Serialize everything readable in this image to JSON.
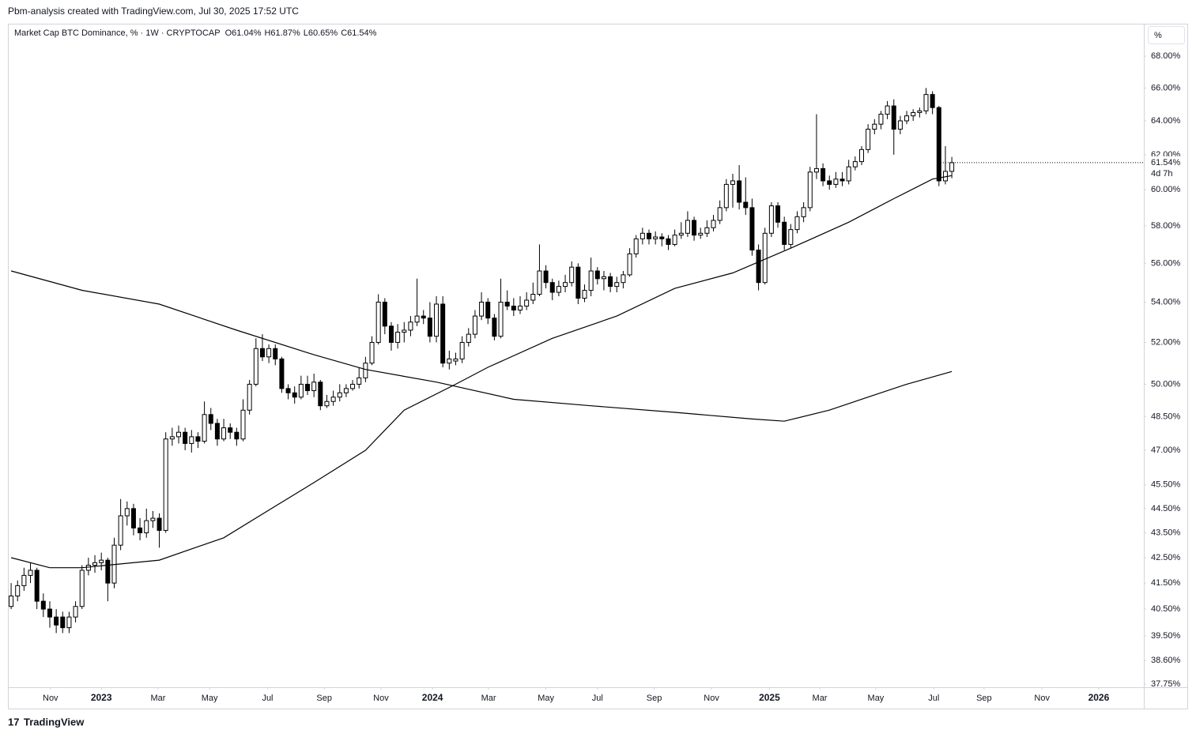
{
  "header": "Pbm-analysis created with TradingView.com, Jul 30, 2025 17:52 UTC",
  "footer": "TradingView",
  "chart_data": {
    "type": "candlestick",
    "title": "Market Cap BTC Dominance, % · 1W · CRYPTOCAP",
    "ohlc_labels": [
      "O61.04%",
      "H61.87%",
      "L60.65%",
      "C61.54%"
    ],
    "scale_button": "%",
    "price_marker": {
      "value": 61.54,
      "label": "61.54%"
    },
    "countdown": "4d 7h",
    "log_scale": true,
    "grid": false,
    "up_color": "#ffffff",
    "down_color": "#000000",
    "ylim": [
      37.64,
      70.1
    ],
    "yticks": [
      {
        "value": 37.75,
        "label": "37.75%"
      },
      {
        "value": 38.6,
        "label": "38.60%"
      },
      {
        "value": 39.5,
        "label": "39.50%"
      },
      {
        "value": 40.5,
        "label": "40.50%"
      },
      {
        "value": 41.5,
        "label": "41.50%"
      },
      {
        "value": 42.5,
        "label": "42.50%"
      },
      {
        "value": 43.5,
        "label": "43.50%"
      },
      {
        "value": 44.5,
        "label": "44.50%"
      },
      {
        "value": 45.5,
        "label": "45.50%"
      },
      {
        "value": 47,
        "label": "47.00%"
      },
      {
        "value": 48.5,
        "label": "48.50%"
      },
      {
        "value": 50,
        "label": "50.00%"
      },
      {
        "value": 52,
        "label": "52.00%"
      },
      {
        "value": 54,
        "label": "54.00%"
      },
      {
        "value": 56,
        "label": "56.00%"
      },
      {
        "value": 58,
        "label": "58.00%"
      },
      {
        "value": 60,
        "label": "60.00%"
      },
      {
        "value": 62,
        "label": "62.00%"
      },
      {
        "value": 64,
        "label": "64.00%"
      },
      {
        "value": 66,
        "label": "66.00%"
      },
      {
        "value": 68,
        "label": "68.00%"
      }
    ],
    "xlim": [
      -0.5,
      175.8
    ],
    "xticks": [
      {
        "value": 6.1,
        "label": "Nov"
      },
      {
        "value": 14,
        "label": "2023"
      },
      {
        "value": 22.8,
        "label": "Mar"
      },
      {
        "value": 30.8,
        "label": "May"
      },
      {
        "value": 39.8,
        "label": "Jul"
      },
      {
        "value": 48.6,
        "label": "Sep"
      },
      {
        "value": 57.4,
        "label": "Nov"
      },
      {
        "value": 65.4,
        "label": "2024"
      },
      {
        "value": 74.1,
        "label": "Mar"
      },
      {
        "value": 83,
        "label": "May"
      },
      {
        "value": 91,
        "label": "Jul"
      },
      {
        "value": 99.8,
        "label": "Sep"
      },
      {
        "value": 108.7,
        "label": "Nov"
      },
      {
        "value": 117.7,
        "label": "2025"
      },
      {
        "value": 125.5,
        "label": "Mar"
      },
      {
        "value": 134.2,
        "label": "May"
      },
      {
        "value": 143.2,
        "label": "Jul"
      },
      {
        "value": 151,
        "label": "Sep"
      },
      {
        "value": 160,
        "label": "Nov"
      },
      {
        "value": 168.8,
        "label": "2026"
      }
    ],
    "candles": [
      [
        40.6,
        41.5,
        40.5,
        41.0
      ],
      [
        41.0,
        41.6,
        40.8,
        41.4
      ],
      [
        41.4,
        42.1,
        41.2,
        41.8
      ],
      [
        41.8,
        42.3,
        41.5,
        42.0
      ],
      [
        42.0,
        42.1,
        40.5,
        40.8
      ],
      [
        40.8,
        41.1,
        40.2,
        40.5
      ],
      [
        40.5,
        40.8,
        39.8,
        40.2
      ],
      [
        40.2,
        40.5,
        39.6,
        39.9
      ],
      [
        40.2,
        40.4,
        39.6,
        39.8
      ],
      [
        39.8,
        40.4,
        39.6,
        40.2
      ],
      [
        40.2,
        40.8,
        40.0,
        40.6
      ],
      [
        40.6,
        42.2,
        40.5,
        42.0
      ],
      [
        42.0,
        42.5,
        41.8,
        42.2
      ],
      [
        42.2,
        42.6,
        41.9,
        42.3
      ],
      [
        42.3,
        42.7,
        42.0,
        42.4
      ],
      [
        42.4,
        42.5,
        40.8,
        41.5
      ],
      [
        41.5,
        43.3,
        41.3,
        43.0
      ],
      [
        43.0,
        44.9,
        42.8,
        44.2
      ],
      [
        44.2,
        44.8,
        43.8,
        44.5
      ],
      [
        44.5,
        44.7,
        43.4,
        43.7
      ],
      [
        43.7,
        44.1,
        43.2,
        43.5
      ],
      [
        43.5,
        44.5,
        43.3,
        44.0
      ],
      [
        44.0,
        44.4,
        43.7,
        44.1
      ],
      [
        44.1,
        44.3,
        42.9,
        43.6
      ],
      [
        43.6,
        47.8,
        43.5,
        47.5
      ],
      [
        47.5,
        48.0,
        47.2,
        47.6
      ],
      [
        47.6,
        48.1,
        47.3,
        47.8
      ],
      [
        47.8,
        48.0,
        47.0,
        47.3
      ],
      [
        47.3,
        47.9,
        46.9,
        47.6
      ],
      [
        47.6,
        47.8,
        47.1,
        47.4
      ],
      [
        47.4,
        49.2,
        47.3,
        48.6
      ],
      [
        48.6,
        48.9,
        47.9,
        48.2
      ],
      [
        48.2,
        48.4,
        47.2,
        47.5
      ],
      [
        47.5,
        48.4,
        47.4,
        48.0
      ],
      [
        48.0,
        48.2,
        47.5,
        47.8
      ],
      [
        47.8,
        48.0,
        47.2,
        47.5
      ],
      [
        47.5,
        49.3,
        47.4,
        48.8
      ],
      [
        48.8,
        50.2,
        48.6,
        50.0
      ],
      [
        50.0,
        52.2,
        49.9,
        51.7
      ],
      [
        51.7,
        52.4,
        51.1,
        51.3
      ],
      [
        51.3,
        51.9,
        51.0,
        51.7
      ],
      [
        51.7,
        51.9,
        50.9,
        51.2
      ],
      [
        51.2,
        51.3,
        49.6,
        49.8
      ],
      [
        49.8,
        50.0,
        49.3,
        49.6
      ],
      [
        49.6,
        49.9,
        49.1,
        49.4
      ],
      [
        49.4,
        50.4,
        49.3,
        50.0
      ],
      [
        50.0,
        50.4,
        49.5,
        49.7
      ],
      [
        49.7,
        50.5,
        49.4,
        50.1
      ],
      [
        50.1,
        50.2,
        48.8,
        49.0
      ],
      [
        49.0,
        49.5,
        48.9,
        49.2
      ],
      [
        49.2,
        49.7,
        49.0,
        49.4
      ],
      [
        49.4,
        50.0,
        49.2,
        49.6
      ],
      [
        49.6,
        50.0,
        49.4,
        49.8
      ],
      [
        49.8,
        50.2,
        49.7,
        50.0
      ],
      [
        50.0,
        50.8,
        49.8,
        50.3
      ],
      [
        50.3,
        51.3,
        50.1,
        51.0
      ],
      [
        51.0,
        52.3,
        50.9,
        52.0
      ],
      [
        52.0,
        54.4,
        51.9,
        54.0
      ],
      [
        54.0,
        54.2,
        52.4,
        52.8
      ],
      [
        52.8,
        53.0,
        51.6,
        52.0
      ],
      [
        52.0,
        52.9,
        51.7,
        52.5
      ],
      [
        52.5,
        53.0,
        52.0,
        52.6
      ],
      [
        52.6,
        53.3,
        52.3,
        53.0
      ],
      [
        53.0,
        55.2,
        52.8,
        53.3
      ],
      [
        53.3,
        53.6,
        52.9,
        53.2
      ],
      [
        53.2,
        54.0,
        52.0,
        52.3
      ],
      [
        52.3,
        54.3,
        52.0,
        53.9
      ],
      [
        53.9,
        54.3,
        50.8,
        51.0
      ],
      [
        51.0,
        51.6,
        50.7,
        51.2
      ],
      [
        51.1,
        51.5,
        50.9,
        51.2
      ],
      [
        51.2,
        52.3,
        51.0,
        52.0
      ],
      [
        52.0,
        52.7,
        51.8,
        52.4
      ],
      [
        52.4,
        53.6,
        52.2,
        53.3
      ],
      [
        53.3,
        54.5,
        53.1,
        54.0
      ],
      [
        54.0,
        54.2,
        52.9,
        53.2
      ],
      [
        53.2,
        53.4,
        52.1,
        52.3
      ],
      [
        52.3,
        55.2,
        52.2,
        54.0
      ],
      [
        54.0,
        54.6,
        53.6,
        53.8
      ],
      [
        53.8,
        54.2,
        53.3,
        53.6
      ],
      [
        53.6,
        54.3,
        53.4,
        53.8
      ],
      [
        53.8,
        54.5,
        53.6,
        54.1
      ],
      [
        54.1,
        55.0,
        53.9,
        54.4
      ],
      [
        54.4,
        57.0,
        54.3,
        55.6
      ],
      [
        55.6,
        55.9,
        54.7,
        55.0
      ],
      [
        55.0,
        55.2,
        54.1,
        54.5
      ],
      [
        54.5,
        55.1,
        54.3,
        54.8
      ],
      [
        54.8,
        55.4,
        54.5,
        55.0
      ],
      [
        55.0,
        56.1,
        54.8,
        55.8
      ],
      [
        55.8,
        56.0,
        53.9,
        54.2
      ],
      [
        54.2,
        54.9,
        54.0,
        54.6
      ],
      [
        54.6,
        56.3,
        54.3,
        55.6
      ],
      [
        55.6,
        55.8,
        54.9,
        55.2
      ],
      [
        55.2,
        55.6,
        54.6,
        55.3
      ],
      [
        55.3,
        55.5,
        54.5,
        54.8
      ],
      [
        54.8,
        55.3,
        54.5,
        55.0
      ],
      [
        55.0,
        55.6,
        54.7,
        55.4
      ],
      [
        55.4,
        56.8,
        55.3,
        56.5
      ],
      [
        56.5,
        57.5,
        56.3,
        57.3
      ],
      [
        57.3,
        57.9,
        57.0,
        57.6
      ],
      [
        57.6,
        57.8,
        57.0,
        57.3
      ],
      [
        57.3,
        57.7,
        57.0,
        57.4
      ],
      [
        57.4,
        57.6,
        56.9,
        57.3
      ],
      [
        57.3,
        57.5,
        56.7,
        57.0
      ],
      [
        57.0,
        57.8,
        56.9,
        57.5
      ],
      [
        57.5,
        58.2,
        57.3,
        57.6
      ],
      [
        57.6,
        58.8,
        57.4,
        58.3
      ],
      [
        58.3,
        58.5,
        57.2,
        57.5
      ],
      [
        57.5,
        57.9,
        57.3,
        57.6
      ],
      [
        57.6,
        58.3,
        57.4,
        57.9
      ],
      [
        57.9,
        58.6,
        57.7,
        58.3
      ],
      [
        58.3,
        59.4,
        58.1,
        59.0
      ],
      [
        59.0,
        60.6,
        58.8,
        60.3
      ],
      [
        60.3,
        60.9,
        59.0,
        60.5
      ],
      [
        60.5,
        61.4,
        58.9,
        59.3
      ],
      [
        59.3,
        60.7,
        58.6,
        59.0
      ],
      [
        59.0,
        59.5,
        56.4,
        56.7
      ],
      [
        56.7,
        57.0,
        54.6,
        55.0
      ],
      [
        55.0,
        57.9,
        54.9,
        57.6
      ],
      [
        57.6,
        59.3,
        57.4,
        59.1
      ],
      [
        59.1,
        59.3,
        57.9,
        58.2
      ],
      [
        58.2,
        58.5,
        56.7,
        57.0
      ],
      [
        57.0,
        58.1,
        56.8,
        57.8
      ],
      [
        57.8,
        58.8,
        57.6,
        58.5
      ],
      [
        58.5,
        59.3,
        58.2,
        59.0
      ],
      [
        59.0,
        61.3,
        58.8,
        61.0
      ],
      [
        61.0,
        64.4,
        60.6,
        61.2
      ],
      [
        61.2,
        61.5,
        60.2,
        60.5
      ],
      [
        60.5,
        60.8,
        60.0,
        60.3
      ],
      [
        60.3,
        61.0,
        60.1,
        60.6
      ],
      [
        60.6,
        61.0,
        60.2,
        60.5
      ],
      [
        60.5,
        61.7,
        60.3,
        61.3
      ],
      [
        61.3,
        61.9,
        61.1,
        61.6
      ],
      [
        61.6,
        62.5,
        61.4,
        62.3
      ],
      [
        62.3,
        63.8,
        62.1,
        63.5
      ],
      [
        63.5,
        64.1,
        63.2,
        63.8
      ],
      [
        63.8,
        64.6,
        63.5,
        64.4
      ],
      [
        64.4,
        65.2,
        64.1,
        64.9
      ],
      [
        64.9,
        65.3,
        62.0,
        63.5
      ],
      [
        63.5,
        64.3,
        63.2,
        64.0
      ],
      [
        64.0,
        64.6,
        63.8,
        64.3
      ],
      [
        64.3,
        64.7,
        64.0,
        64.5
      ],
      [
        64.5,
        64.8,
        64.2,
        64.6
      ],
      [
        64.6,
        66.0,
        64.4,
        65.6
      ],
      [
        65.6,
        65.8,
        64.4,
        64.8
      ],
      [
        64.8,
        64.9,
        60.2,
        60.5
      ],
      [
        60.5,
        62.5,
        60.3,
        61.04
      ],
      [
        61.04,
        61.87,
        60.65,
        61.54
      ]
    ],
    "lines": [
      {
        "color": "#000000",
        "x": [
          0,
          11,
          23,
          35,
          47,
          55,
          66,
          78,
          90,
          103,
          115,
          120,
          127,
          133,
          139,
          146
        ],
        "values": [
          55.6,
          54.6,
          53.9,
          52.6,
          51.4,
          50.7,
          50.1,
          49.3,
          49.0,
          48.7,
          48.4,
          48.3,
          48.8,
          49.4,
          50.0,
          50.6
        ]
      },
      {
        "color": "#000000",
        "x": [
          0,
          6,
          11,
          23,
          33,
          41,
          47,
          55,
          61,
          69,
          74,
          84,
          94,
          103,
          112,
          121,
          130,
          137,
          143,
          146
        ],
        "values": [
          42.5,
          42.1,
          42.1,
          42.4,
          43.3,
          44.6,
          45.6,
          47.0,
          48.8,
          50.0,
          50.8,
          52.2,
          53.3,
          54.7,
          55.5,
          56.8,
          58.2,
          59.5,
          60.6,
          60.8
        ]
      }
    ]
  }
}
